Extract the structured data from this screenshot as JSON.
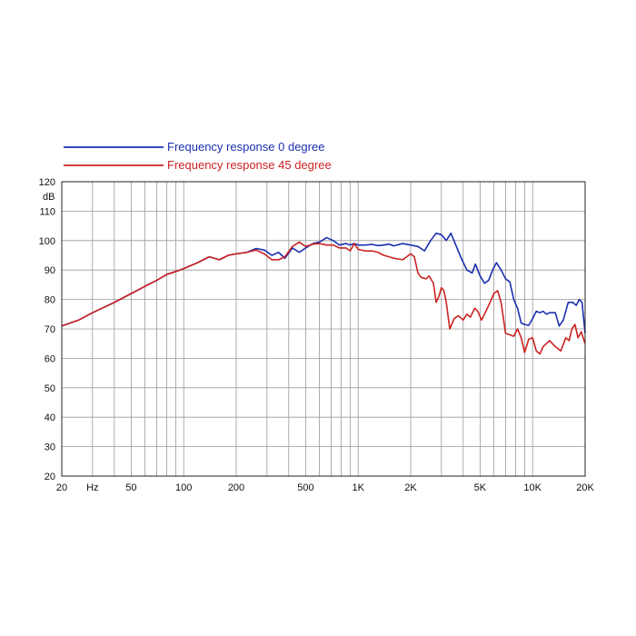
{
  "chart_data": {
    "type": "line",
    "title": "",
    "xlabel": "Hz",
    "ylabel": "dB",
    "x_scale": "log",
    "xlim": [
      20,
      20000
    ],
    "ylim": [
      20,
      120
    ],
    "grid": true,
    "legend_placement": "top-left",
    "x_tick_labels": [
      {
        "value": 20,
        "label": "20"
      },
      {
        "value": 50,
        "label": "50"
      },
      {
        "value": 100,
        "label": "100"
      },
      {
        "value": 200,
        "label": "200"
      },
      {
        "value": 500,
        "label": "500"
      },
      {
        "value": 1000,
        "label": "1K"
      },
      {
        "value": 2000,
        "label": "2K"
      },
      {
        "value": 5000,
        "label": "5K"
      },
      {
        "value": 10000,
        "label": "10K"
      },
      {
        "value": 20000,
        "label": "20K"
      }
    ],
    "x_unit_label": {
      "value": 30,
      "label": "Hz"
    },
    "y_ticks": [
      20,
      30,
      40,
      50,
      60,
      70,
      80,
      90,
      100,
      110,
      120
    ],
    "series": [
      {
        "name": "Frequency response 0 degree",
        "color": "#1a2fb0",
        "points": [
          [
            20,
            71
          ],
          [
            25,
            73
          ],
          [
            30,
            75.5
          ],
          [
            40,
            79
          ],
          [
            50,
            82
          ],
          [
            60,
            84.5
          ],
          [
            70,
            86.5
          ],
          [
            80,
            88.5
          ],
          [
            90,
            89.5
          ],
          [
            100,
            90.5
          ],
          [
            120,
            92.5
          ],
          [
            140,
            94.5
          ],
          [
            160,
            93.5
          ],
          [
            180,
            95
          ],
          [
            200,
            95.5
          ],
          [
            230,
            96
          ],
          [
            260,
            97.3
          ],
          [
            290,
            96.8
          ],
          [
            320,
            95
          ],
          [
            350,
            96
          ],
          [
            380,
            94
          ],
          [
            420,
            97.5
          ],
          [
            460,
            96
          ],
          [
            500,
            97.5
          ],
          [
            550,
            99
          ],
          [
            600,
            99.5
          ],
          [
            660,
            101
          ],
          [
            720,
            100
          ],
          [
            780,
            98.5
          ],
          [
            850,
            99
          ],
          [
            900,
            98.5
          ],
          [
            950,
            99
          ],
          [
            1000,
            98.5
          ],
          [
            1100,
            98.5
          ],
          [
            1200,
            98.7
          ],
          [
            1300,
            98.3
          ],
          [
            1400,
            98.5
          ],
          [
            1500,
            98.8
          ],
          [
            1600,
            98.2
          ],
          [
            1800,
            99
          ],
          [
            2000,
            98.5
          ],
          [
            2200,
            98
          ],
          [
            2400,
            96.5
          ],
          [
            2600,
            100
          ],
          [
            2800,
            102.5
          ],
          [
            3000,
            102
          ],
          [
            3200,
            100
          ],
          [
            3400,
            102.5
          ],
          [
            3600,
            99
          ],
          [
            3900,
            94
          ],
          [
            4200,
            90
          ],
          [
            4500,
            89
          ],
          [
            4700,
            92
          ],
          [
            5000,
            88
          ],
          [
            5300,
            85.5
          ],
          [
            5600,
            86.5
          ],
          [
            5900,
            90
          ],
          [
            6200,
            92.5
          ],
          [
            6600,
            90
          ],
          [
            7000,
            87
          ],
          [
            7400,
            86
          ],
          [
            7800,
            80
          ],
          [
            8200,
            77
          ],
          [
            8600,
            72
          ],
          [
            9000,
            71.5
          ],
          [
            9500,
            71.2
          ],
          [
            10000,
            73.5
          ],
          [
            10500,
            76
          ],
          [
            11000,
            75.5
          ],
          [
            11500,
            76
          ],
          [
            12000,
            75
          ],
          [
            12500,
            75.5
          ],
          [
            13500,
            75.5
          ],
          [
            14200,
            71
          ],
          [
            15000,
            73
          ],
          [
            16000,
            79
          ],
          [
            17000,
            79
          ],
          [
            17800,
            78
          ],
          [
            18500,
            80
          ],
          [
            19200,
            79
          ],
          [
            20000,
            68.5
          ]
        ]
      },
      {
        "name": "Frequency response 45 degree",
        "color": "#cc2222",
        "points": [
          [
            20,
            71
          ],
          [
            25,
            73
          ],
          [
            30,
            75.5
          ],
          [
            40,
            79
          ],
          [
            50,
            82
          ],
          [
            60,
            84.5
          ],
          [
            70,
            86.5
          ],
          [
            80,
            88.5
          ],
          [
            90,
            89.5
          ],
          [
            100,
            90.5
          ],
          [
            120,
            92.5
          ],
          [
            140,
            94.5
          ],
          [
            160,
            93.5
          ],
          [
            180,
            95
          ],
          [
            200,
            95.5
          ],
          [
            230,
            96
          ],
          [
            260,
            96.8
          ],
          [
            290,
            95.5
          ],
          [
            320,
            93.5
          ],
          [
            350,
            93.5
          ],
          [
            380,
            94.5
          ],
          [
            420,
            98
          ],
          [
            460,
            99.5
          ],
          [
            500,
            98
          ],
          [
            550,
            98.8
          ],
          [
            600,
            99
          ],
          [
            660,
            98.5
          ],
          [
            720,
            98.5
          ],
          [
            780,
            97.5
          ],
          [
            850,
            97.5
          ],
          [
            900,
            96.5
          ],
          [
            950,
            99
          ],
          [
            1000,
            97
          ],
          [
            1100,
            96.5
          ],
          [
            1200,
            96.5
          ],
          [
            1300,
            96
          ],
          [
            1400,
            95
          ],
          [
            1500,
            94.5
          ],
          [
            1600,
            94
          ],
          [
            1800,
            93.5
          ],
          [
            2000,
            95.5
          ],
          [
            2100,
            94.5
          ],
          [
            2200,
            89
          ],
          [
            2300,
            87.5
          ],
          [
            2450,
            87
          ],
          [
            2550,
            88
          ],
          [
            2700,
            85.5
          ],
          [
            2800,
            79
          ],
          [
            2900,
            81
          ],
          [
            3000,
            84
          ],
          [
            3100,
            83
          ],
          [
            3200,
            79
          ],
          [
            3350,
            70
          ],
          [
            3550,
            73.5
          ],
          [
            3750,
            74.5
          ],
          [
            4000,
            73
          ],
          [
            4200,
            75
          ],
          [
            4400,
            74
          ],
          [
            4650,
            77
          ],
          [
            4850,
            76
          ],
          [
            5100,
            73
          ],
          [
            5400,
            76
          ],
          [
            5700,
            79
          ],
          [
            6000,
            82
          ],
          [
            6300,
            83
          ],
          [
            6600,
            79
          ],
          [
            7000,
            68.5
          ],
          [
            7400,
            68
          ],
          [
            7800,
            67.5
          ],
          [
            8200,
            70
          ],
          [
            8600,
            67
          ],
          [
            9000,
            62
          ],
          [
            9500,
            66.5
          ],
          [
            10000,
            67
          ],
          [
            10500,
            62.5
          ],
          [
            11000,
            61.5
          ],
          [
            11500,
            64
          ],
          [
            12500,
            66
          ],
          [
            13500,
            64
          ],
          [
            14500,
            62.5
          ],
          [
            15500,
            67
          ],
          [
            16200,
            66
          ],
          [
            16800,
            70
          ],
          [
            17500,
            71.5
          ],
          [
            18200,
            67
          ],
          [
            19000,
            69
          ],
          [
            20000,
            65
          ]
        ]
      }
    ]
  }
}
